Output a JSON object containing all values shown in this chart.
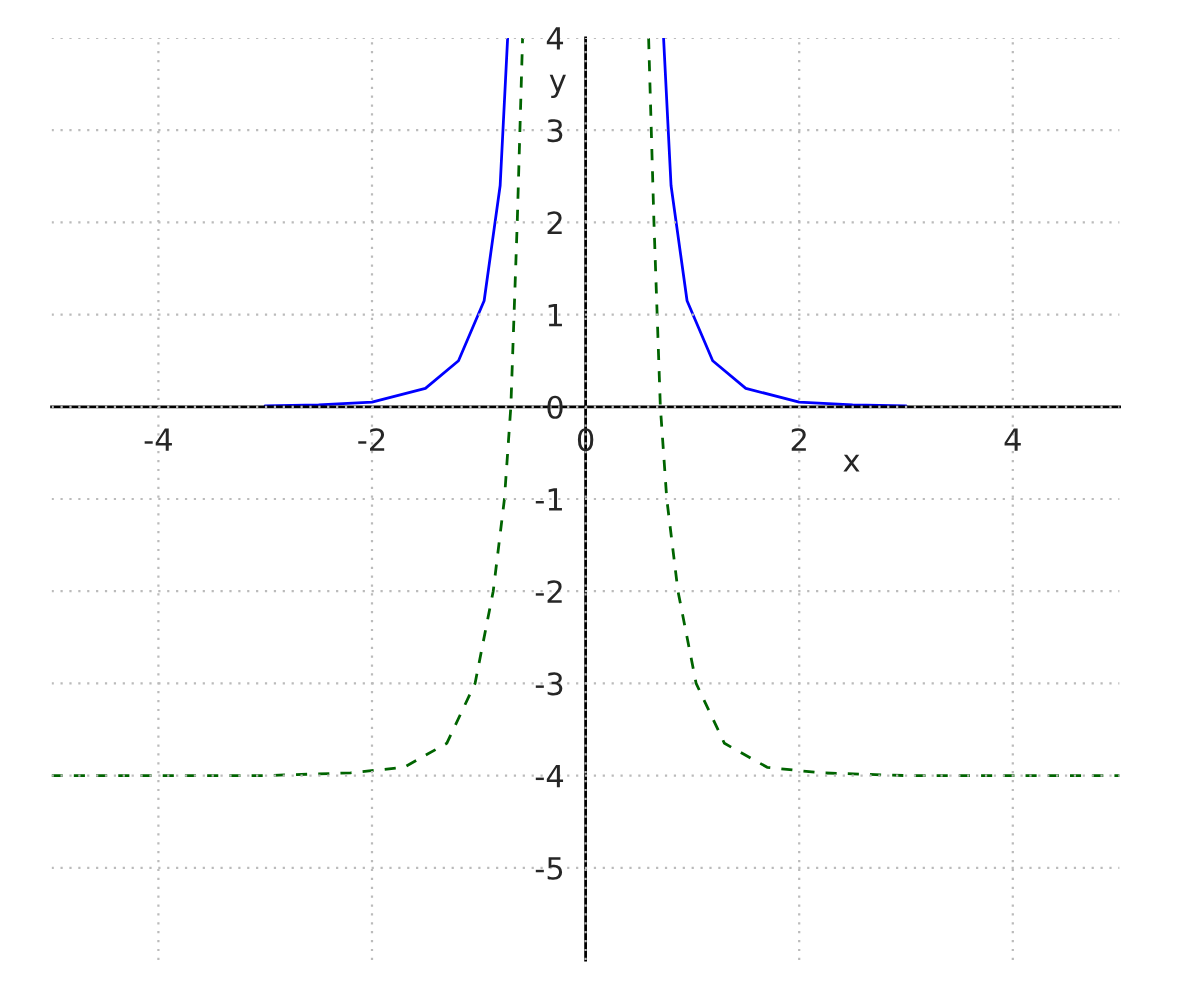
{
  "chart_data": {
    "type": "line",
    "xlabel": "x",
    "ylabel": "y",
    "xlim": [
      -5,
      5
    ],
    "ylim": [
      -6,
      4
    ],
    "xticks": [
      -4,
      -2,
      0,
      2,
      4
    ],
    "yticks": [
      -5,
      -4,
      -3,
      -2,
      -1,
      0,
      1,
      2,
      3,
      4
    ],
    "grid": true,
    "series": [
      {
        "color": "#0000ff",
        "line_style": "solid",
        "x": [
          -3,
          -2.5,
          -2,
          -1.5,
          -1.19,
          -0.95,
          -0.8,
          -0.73,
          null,
          0.73,
          0.8,
          0.95,
          1.19,
          1.5,
          2,
          2.5,
          3
        ],
        "values": [
          0.01,
          0.02,
          0.05,
          0.2,
          0.5,
          1.15,
          2.4,
          4,
          null,
          4,
          2.4,
          1.15,
          0.5,
          0.2,
          0.05,
          0.02,
          0.01
        ]
      },
      {
        "color": "#006400",
        "line_style": "dashed",
        "x": [
          -5,
          -4,
          -3,
          -2.2,
          -1.7,
          -1.3,
          -1.035,
          -0.865,
          -0.76,
          -0.7,
          -0.64,
          -0.59,
          null,
          0.59,
          0.64,
          0.7,
          0.76,
          0.865,
          1.035,
          1.3,
          1.7,
          2.2,
          3,
          4,
          5
        ],
        "values": [
          -4,
          -4,
          -4,
          -3.97,
          -3.91,
          -3.65,
          -3,
          -2,
          -1,
          0,
          2,
          4,
          null,
          4,
          2,
          0,
          -1,
          -2,
          -3,
          -3.65,
          -3.91,
          -3.97,
          -4,
          -4,
          -4
        ]
      }
    ]
  }
}
